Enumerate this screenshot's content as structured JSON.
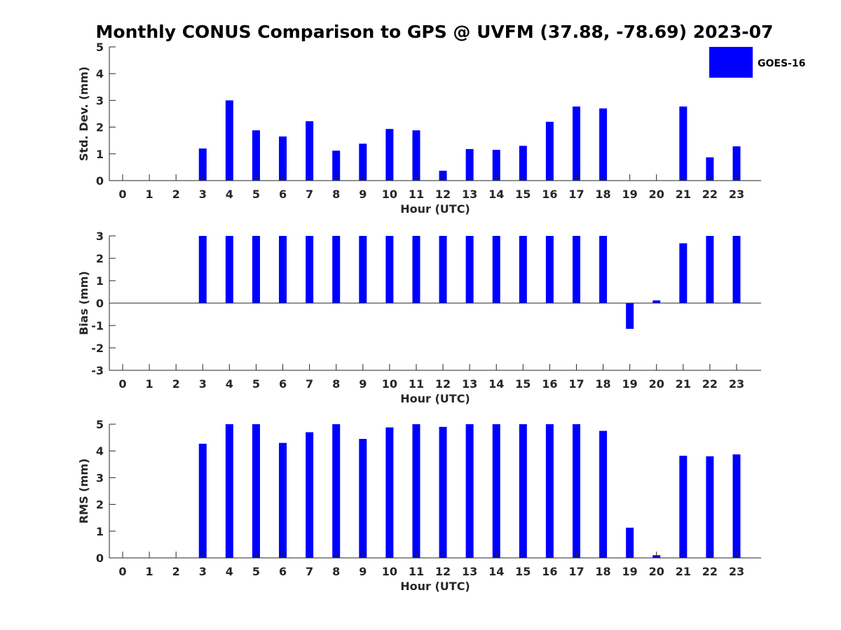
{
  "figure": {
    "title": "Monthly CONUS Comparison to GPS @ UVFM (37.88, -78.69) 2023-07",
    "bar_color": "#0000ff",
    "legend": {
      "label": "GOES-16",
      "color": "#0000ff"
    }
  },
  "chart_data": [
    {
      "type": "bar",
      "id": "stddev",
      "title": "Monthly CONUS Comparison to GPS @ UVFM (37.88, -78.69) 2023-07",
      "xlabel": "Hour (UTC)",
      "ylabel": "Std. Dev. (mm)",
      "ylim": [
        0,
        5
      ],
      "yticks": [
        0,
        1,
        2,
        3,
        4,
        5
      ],
      "categories": [
        0,
        1,
        2,
        3,
        4,
        5,
        6,
        7,
        8,
        9,
        10,
        11,
        12,
        13,
        14,
        15,
        16,
        17,
        18,
        19,
        20,
        21,
        22,
        23
      ],
      "series": [
        {
          "name": "GOES-16",
          "color": "#0000ff",
          "values": [
            0,
            0,
            0,
            1.2,
            3.0,
            1.88,
            1.65,
            2.22,
            1.12,
            1.38,
            1.93,
            1.88,
            0.37,
            1.18,
            1.15,
            1.3,
            2.2,
            2.77,
            2.7,
            0,
            0,
            2.77,
            0.87,
            1.28
          ]
        }
      ]
    },
    {
      "type": "bar",
      "id": "bias",
      "xlabel": "Hour (UTC)",
      "ylabel": "Bias (mm)",
      "ylim": [
        -3,
        3
      ],
      "yticks": [
        -3,
        -2,
        -1,
        0,
        1,
        2,
        3
      ],
      "categories": [
        0,
        1,
        2,
        3,
        4,
        5,
        6,
        7,
        8,
        9,
        10,
        11,
        12,
        13,
        14,
        15,
        16,
        17,
        18,
        19,
        20,
        21,
        22,
        23
      ],
      "series": [
        {
          "name": "GOES-16",
          "color": "#0000ff",
          "values": [
            0,
            0,
            0,
            3,
            3,
            3,
            3,
            3,
            3,
            3,
            3,
            3,
            3,
            3,
            3,
            3,
            3,
            3,
            3,
            -1.15,
            0.12,
            2.67,
            3,
            3
          ]
        }
      ]
    },
    {
      "type": "bar",
      "id": "rms",
      "xlabel": "Hour (UTC)",
      "ylabel": "RMS (mm)",
      "ylim": [
        0,
        5
      ],
      "yticks": [
        0,
        1,
        2,
        3,
        4,
        5
      ],
      "categories": [
        0,
        1,
        2,
        3,
        4,
        5,
        6,
        7,
        8,
        9,
        10,
        11,
        12,
        13,
        14,
        15,
        16,
        17,
        18,
        19,
        20,
        21,
        22,
        23
      ],
      "series": [
        {
          "name": "GOES-16",
          "color": "#0000ff",
          "values": [
            0,
            0,
            0,
            4.27,
            5,
            5,
            4.3,
            4.7,
            5,
            4.45,
            4.88,
            5,
            4.9,
            5,
            5,
            5,
            5,
            5,
            4.75,
            1.13,
            0.1,
            3.82,
            3.8,
            3.87
          ]
        }
      ]
    }
  ]
}
